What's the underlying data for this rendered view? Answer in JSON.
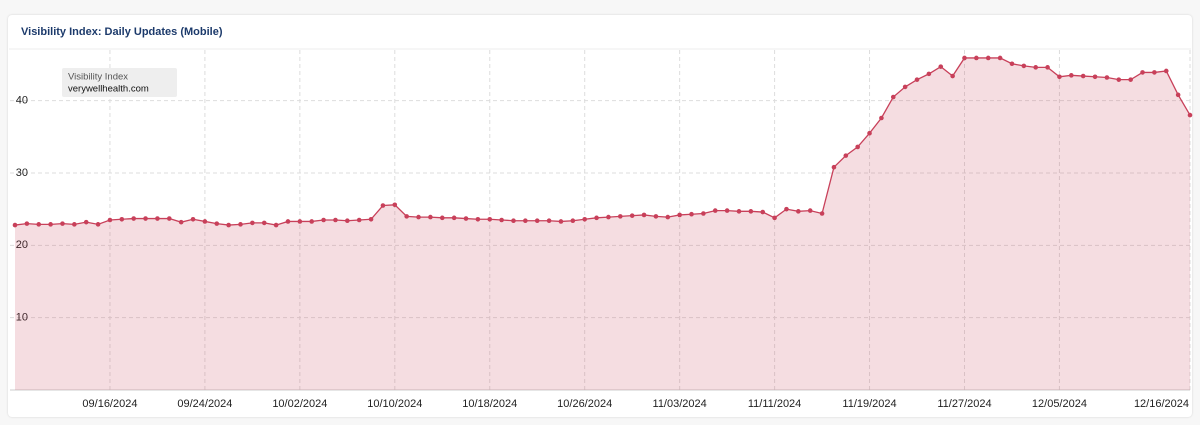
{
  "chart_data": {
    "type": "area",
    "title": "Visibility Index: Daily Updates (Mobile)",
    "legend_title": "Visibility Index",
    "x": [
      "2024-09-08",
      "2024-09-09",
      "2024-09-10",
      "2024-09-11",
      "2024-09-12",
      "2024-09-13",
      "2024-09-14",
      "2024-09-15",
      "2024-09-16",
      "2024-09-17",
      "2024-09-18",
      "2024-09-19",
      "2024-09-20",
      "2024-09-21",
      "2024-09-22",
      "2024-09-23",
      "2024-09-24",
      "2024-09-25",
      "2024-09-26",
      "2024-09-27",
      "2024-09-28",
      "2024-09-29",
      "2024-09-30",
      "2024-10-01",
      "2024-10-02",
      "2024-10-03",
      "2024-10-04",
      "2024-10-05",
      "2024-10-06",
      "2024-10-07",
      "2024-10-08",
      "2024-10-09",
      "2024-10-10",
      "2024-10-11",
      "2024-10-12",
      "2024-10-13",
      "2024-10-14",
      "2024-10-15",
      "2024-10-16",
      "2024-10-17",
      "2024-10-18",
      "2024-10-19",
      "2024-10-20",
      "2024-10-21",
      "2024-10-22",
      "2024-10-23",
      "2024-10-24",
      "2024-10-25",
      "2024-10-26",
      "2024-10-27",
      "2024-10-28",
      "2024-10-29",
      "2024-10-30",
      "2024-10-31",
      "2024-11-01",
      "2024-11-02",
      "2024-11-03",
      "2024-11-04",
      "2024-11-05",
      "2024-11-06",
      "2024-11-07",
      "2024-11-08",
      "2024-11-09",
      "2024-11-10",
      "2024-11-11",
      "2024-11-12",
      "2024-11-13",
      "2024-11-14",
      "2024-11-15",
      "2024-11-16",
      "2024-11-17",
      "2024-11-18",
      "2024-11-19",
      "2024-11-20",
      "2024-11-21",
      "2024-11-22",
      "2024-11-23",
      "2024-11-24",
      "2024-11-25",
      "2024-11-26",
      "2024-11-27",
      "2024-11-28",
      "2024-11-29",
      "2024-11-30",
      "2024-12-01",
      "2024-12-02",
      "2024-12-03",
      "2024-12-04",
      "2024-12-05",
      "2024-12-06",
      "2024-12-07",
      "2024-12-08",
      "2024-12-09",
      "2024-12-10",
      "2024-12-11",
      "2024-12-12",
      "2024-12-13",
      "2024-12-14",
      "2024-12-15",
      "2024-12-16"
    ],
    "series": [
      {
        "name": "verywellhealth.com",
        "color": "#c8405a",
        "values": [
          22.8,
          23.0,
          22.9,
          22.9,
          23.0,
          22.9,
          23.2,
          22.9,
          23.5,
          23.6,
          23.7,
          23.7,
          23.7,
          23.7,
          23.2,
          23.6,
          23.3,
          23.0,
          22.8,
          22.9,
          23.1,
          23.1,
          22.8,
          23.3,
          23.3,
          23.3,
          23.5,
          23.5,
          23.4,
          23.5,
          23.6,
          25.5,
          25.6,
          24.0,
          23.9,
          23.9,
          23.8,
          23.8,
          23.7,
          23.6,
          23.6,
          23.5,
          23.4,
          23.4,
          23.4,
          23.4,
          23.3,
          23.4,
          23.6,
          23.8,
          23.9,
          24.0,
          24.1,
          24.2,
          24.0,
          23.9,
          24.2,
          24.3,
          24.4,
          24.8,
          24.8,
          24.7,
          24.7,
          24.6,
          23.8,
          25.0,
          24.7,
          24.8,
          24.4,
          30.8,
          32.4,
          33.6,
          35.5,
          37.6,
          40.5,
          41.9,
          42.9,
          43.7,
          44.7,
          43.4,
          45.9,
          45.9,
          45.9,
          45.9,
          45.1,
          44.8,
          44.6,
          44.6,
          43.3,
          43.5,
          43.4,
          43.3,
          43.2,
          42.9,
          42.9,
          43.9,
          43.9,
          44.1,
          40.8,
          38.0
        ]
      }
    ],
    "xlim": [
      "2024-09-08",
      "2024-12-16"
    ],
    "xticks": [
      {
        "value": "2024-09-16",
        "label": "09/16/2024"
      },
      {
        "value": "2024-09-24",
        "label": "09/24/2024"
      },
      {
        "value": "2024-10-02",
        "label": "10/02/2024"
      },
      {
        "value": "2024-10-10",
        "label": "10/10/2024"
      },
      {
        "value": "2024-10-18",
        "label": "10/18/2024"
      },
      {
        "value": "2024-10-26",
        "label": "10/26/2024"
      },
      {
        "value": "2024-11-03",
        "label": "11/03/2024"
      },
      {
        "value": "2024-11-11",
        "label": "11/11/2024"
      },
      {
        "value": "2024-11-19",
        "label": "11/19/2024"
      },
      {
        "value": "2024-11-27",
        "label": "11/27/2024"
      },
      {
        "value": "2024-12-05",
        "label": "12/05/2024"
      },
      {
        "value": "2024-12-16",
        "label": "12/16/2024"
      }
    ],
    "ylim": [
      0,
      47
    ],
    "yticks": [
      10,
      20,
      30,
      40
    ],
    "grid": true
  }
}
